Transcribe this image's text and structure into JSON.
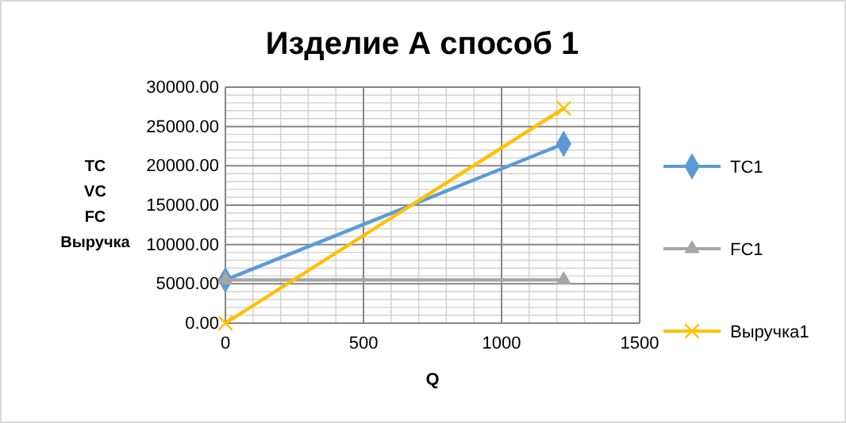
{
  "chart_data": {
    "type": "line",
    "title": "Изделие А способ 1",
    "xlabel": "Q",
    "ylabel": "TC\nVC\nFC\nВыручка",
    "x": [
      0,
      1225
    ],
    "xlim": [
      0,
      1500
    ],
    "xticks": [
      0,
      500,
      1000,
      1500
    ],
    "ylim": [
      0,
      30000
    ],
    "yticks": [
      {
        "value": 0,
        "label": "0.00"
      },
      {
        "value": 5000,
        "label": "5000.00"
      },
      {
        "value": 10000,
        "label": "10000.00"
      },
      {
        "value": 15000,
        "label": "15000.00"
      },
      {
        "value": 20000,
        "label": "20000.00"
      },
      {
        "value": 25000,
        "label": "25000.00"
      },
      {
        "value": 30000,
        "label": "30000.00"
      }
    ],
    "grid": true,
    "legend": "right",
    "series": [
      {
        "name": "TC1",
        "color": "#5b9bd5",
        "marker": "diamond",
        "values": [
          5500,
          22800
        ]
      },
      {
        "name": "FC1",
        "color": "#a5a5a5",
        "marker": "triangle",
        "values": [
          5500,
          5500
        ]
      },
      {
        "name": "Выручка1",
        "color": "#ffc000",
        "marker": "cross",
        "values": [
          0,
          27300
        ]
      }
    ]
  }
}
